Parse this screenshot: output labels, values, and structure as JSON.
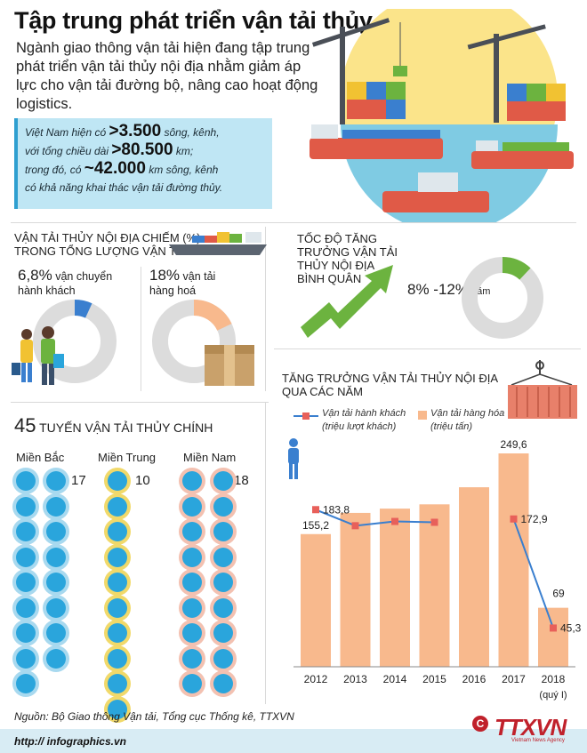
{
  "title": "Tập trung phát triển vận tải thủy nội địa",
  "intro": "Ngành giao thông vận tải hiện đang tập trung phát triển vận tải thủy nội địa nhằm giảm áp lực cho vận tải đường bộ, nâng cao hoạt động logistics.",
  "stats": {
    "line1_pre": "Việt Nam hiện có ",
    "line1_val": ">3.500",
    "line1_post": " sông, kênh,",
    "line2_pre": "với tổng chiều dài ",
    "line2_val": ">80.500",
    "line2_post": " km;",
    "line3_pre": "trong đó, có ",
    "line3_val": "~42.000",
    "line3_post": " km sông, kênh",
    "line4": "có khả năng khai thác vận tải đường thủy."
  },
  "share": {
    "title_line1": "VẬN TẢI THỦY NỘI ĐỊA CHIẾM (%)",
    "title_line2": "TRONG TỔNG LƯỢNG VẬN TẢI",
    "passenger_pct": "6,8%",
    "passenger_label_a": " vận chuyển",
    "passenger_label_b": "hành khách",
    "cargo_pct": "18%",
    "cargo_label_a": " vận tải",
    "cargo_label_b": "hàng hoá",
    "passenger_value": 6.8,
    "cargo_value": 18
  },
  "growth": {
    "title_line1": "TỐC ĐỘ TĂNG",
    "title_line2": "TRƯỞNG VẬN TẢI",
    "title_line3": "THỦY NỘI ĐỊA",
    "title_line4": "BÌNH QUÂN",
    "rate": "8% -12%",
    "unit": "/năm",
    "donut_value": 12
  },
  "routes": {
    "total": "45",
    "title": " TUYẾN VẬN TẢI THỦY CHÍNH",
    "regions": [
      {
        "name": "Miền Bắc",
        "count": "17",
        "n": 17,
        "style": "bac"
      },
      {
        "name": "Miền Trung",
        "count": "10",
        "n": 10,
        "style": "trung"
      },
      {
        "name": "Miền Nam",
        "count": "18",
        "n": 18,
        "style": "nam"
      }
    ]
  },
  "chart_data": {
    "type": "bar",
    "title": "TĂNG TRƯỞNG VẬN TẢI THỦY NỘI ĐỊA QUA CÁC NĂM",
    "title_line1": "TĂNG TRƯỞNG VẬN TẢI THỦY NỘI ĐỊA",
    "title_line2": "QUA CÁC NĂM",
    "categories": [
      "2012",
      "2013",
      "2014",
      "2015",
      "2016",
      "2017",
      "2018"
    ],
    "category_note": "(quý I)",
    "series": [
      {
        "name": "Vận tải hàng hóa",
        "unit": "(triệu tấn)",
        "type": "bar",
        "color": "#f8b98d",
        "values": [
          155.2,
          180,
          185,
          190,
          210,
          249.6,
          69
        ],
        "labels": [
          "155,2",
          "",
          "",
          "",
          "",
          "249,6",
          "69"
        ]
      },
      {
        "name": "Vận tải hành khách",
        "unit": "(triệu lượt khách)",
        "type": "line",
        "color": "#3a7fcf",
        "values": [
          183.8,
          165,
          170,
          169,
          null,
          172.9,
          45.3
        ],
        "labels": [
          "183,8",
          "",
          "",
          "",
          "",
          "172,9",
          "45,3"
        ]
      }
    ],
    "ylim": [
      0,
      260
    ]
  },
  "footer": {
    "source": "Nguồn: Bộ Giao thông Vận tải, Tổng cục Thống kê, TTXVN",
    "site": "http:// infographics.vn",
    "copyright": "C",
    "logo": "TTXVN",
    "logo_sub": "Vietnam News Agency"
  },
  "colors": {
    "blue": "#2aa5dc",
    "orange": "#f8b98d",
    "green": "#6cb33f",
    "navy": "#3a7fcf"
  }
}
